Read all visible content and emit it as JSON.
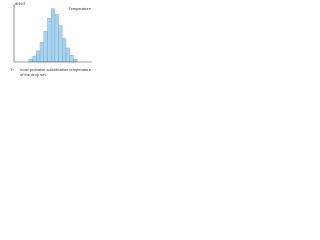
{
  "chart_data": {
    "type": "histogram",
    "y_label": "dN/dT",
    "x_label": "Temperature",
    "annotation": "T*",
    "caption": [
      "most probable solidification temperature",
      "of the drop set."
    ],
    "bins": [
      4,
      5,
      6,
      7,
      8,
      9,
      10,
      11,
      12,
      13,
      14,
      15,
      16,
      17
    ],
    "values": [
      5,
      10,
      20,
      35,
      55,
      78,
      95,
      85,
      65,
      42,
      25,
      12,
      5
    ],
    "color": "#a9d3ee",
    "edge_color": "#5a8fb8",
    "xlim": [
      0,
      21
    ],
    "ylim": [
      0,
      100
    ]
  }
}
